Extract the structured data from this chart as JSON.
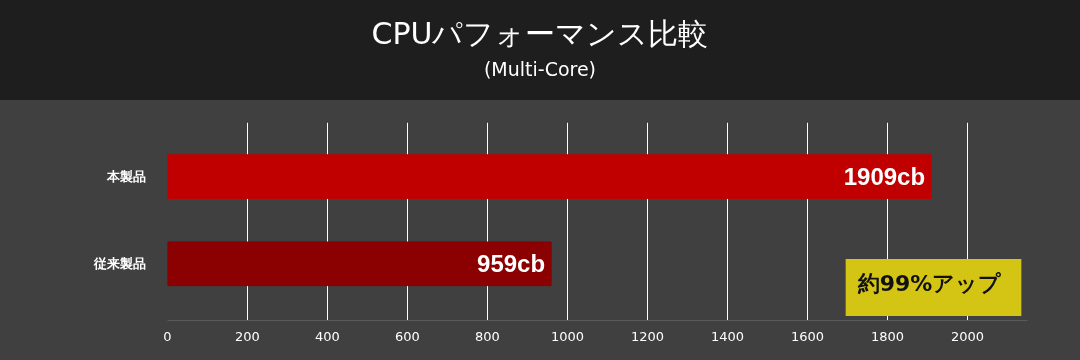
{
  "chart_data": {
    "type": "bar",
    "orientation": "horizontal",
    "title": "CPUパフォーマンス比較",
    "subtitle": "(Multi-Core)",
    "categories": [
      "本製品",
      "従来製品"
    ],
    "values": [
      1909,
      959
    ],
    "colors": [
      "#c00000",
      "#8b0000"
    ],
    "value_labels": [
      "1909cb",
      "959cb"
    ],
    "xlim": [
      0,
      2150
    ],
    "xticks": [
      0,
      200,
      400,
      600,
      800,
      1000,
      1200,
      1400,
      1600,
      1800,
      2000
    ],
    "grid": "x",
    "annotations": [
      "約99%アップ"
    ]
  }
}
